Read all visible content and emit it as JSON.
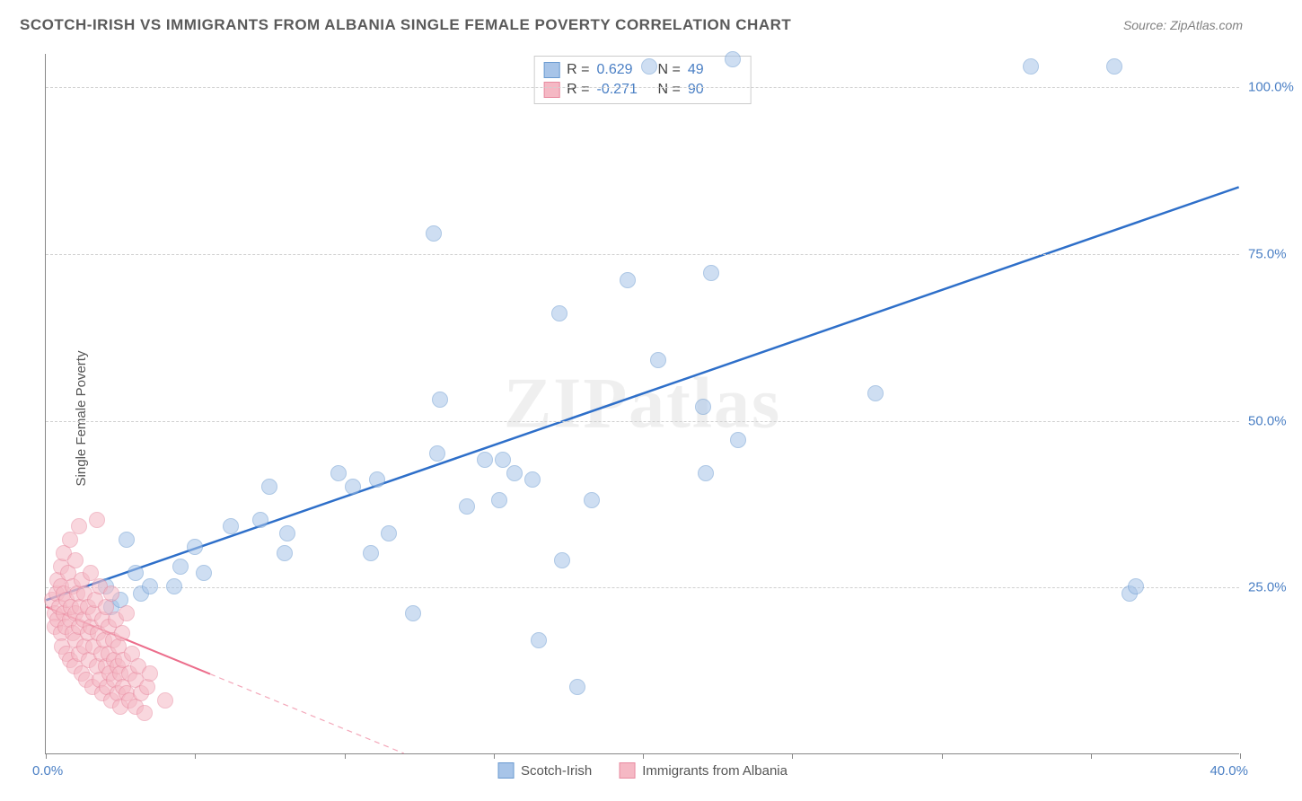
{
  "header": {
    "title": "SCOTCH-IRISH VS IMMIGRANTS FROM ALBANIA SINGLE FEMALE POVERTY CORRELATION CHART",
    "source": "Source: ZipAtlas.com"
  },
  "watermark": "ZIPatlas",
  "chart": {
    "type": "scatter",
    "y_axis_title": "Single Female Poverty",
    "xlim": [
      0,
      40
    ],
    "ylim": [
      0,
      105
    ],
    "x_ticks": [
      0,
      5,
      10,
      15,
      20,
      25,
      30,
      35,
      40
    ],
    "x_tick_labels": {
      "0": "0.0%",
      "40": "40.0%"
    },
    "y_gridlines": [
      25,
      50,
      75,
      100
    ],
    "y_tick_labels": {
      "25": "25.0%",
      "50": "50.0%",
      "75": "75.0%",
      "100": "100.0%"
    },
    "grid_color": "#d0d0d0",
    "axis_color": "#888888",
    "background_color": "#ffffff",
    "tick_label_color": "#4a7fc4",
    "tick_label_fontsize": 15,
    "marker_radius": 9,
    "marker_opacity": 0.55,
    "series": [
      {
        "name": "Scotch-Irish",
        "color_fill": "#a7c4e8",
        "color_stroke": "#6b9bd1",
        "R": "0.629",
        "N": "49",
        "trend": {
          "x1": 0,
          "y1": 23,
          "x2": 40,
          "y2": 85,
          "color": "#2e6fc9",
          "width": 2.5,
          "dash": "none"
        },
        "points": [
          [
            2.0,
            25
          ],
          [
            2.2,
            22
          ],
          [
            2.5,
            23
          ],
          [
            2.7,
            32
          ],
          [
            3.0,
            27
          ],
          [
            3.2,
            24
          ],
          [
            3.5,
            25
          ],
          [
            4.3,
            25
          ],
          [
            4.5,
            28
          ],
          [
            5.0,
            31
          ],
          [
            5.3,
            27
          ],
          [
            6.2,
            34
          ],
          [
            7.2,
            35
          ],
          [
            7.5,
            40
          ],
          [
            8.0,
            30
          ],
          [
            8.1,
            33
          ],
          [
            9.8,
            42
          ],
          [
            10.3,
            40
          ],
          [
            10.9,
            30
          ],
          [
            11.1,
            41
          ],
          [
            11.5,
            33
          ],
          [
            12.3,
            21
          ],
          [
            13.0,
            78
          ],
          [
            13.1,
            45
          ],
          [
            13.2,
            53
          ],
          [
            14.1,
            37
          ],
          [
            14.7,
            44
          ],
          [
            15.2,
            38
          ],
          [
            15.3,
            44
          ],
          [
            15.7,
            42
          ],
          [
            16.3,
            41
          ],
          [
            16.5,
            17
          ],
          [
            17.2,
            66
          ],
          [
            17.3,
            29
          ],
          [
            17.8,
            10
          ],
          [
            18.3,
            38
          ],
          [
            19.5,
            71
          ],
          [
            20.2,
            103
          ],
          [
            20.5,
            59
          ],
          [
            22.0,
            52
          ],
          [
            22.1,
            42
          ],
          [
            22.3,
            72
          ],
          [
            23.0,
            104
          ],
          [
            23.2,
            47
          ],
          [
            27.8,
            54
          ],
          [
            33.0,
            103
          ],
          [
            35.8,
            103
          ],
          [
            36.3,
            24
          ],
          [
            36.5,
            25
          ]
        ]
      },
      {
        "name": "Immigrants from Albania",
        "color_fill": "#f5b8c4",
        "color_stroke": "#e88aa0",
        "R": "-0.271",
        "N": "90",
        "trend": {
          "x1": 0,
          "y1": 22,
          "x2": 12,
          "y2": 0,
          "color": "#ec6e8c",
          "width": 2,
          "dash": "solid_then_dash",
          "solid_until_x": 5.5
        },
        "points": [
          [
            0.2,
            23
          ],
          [
            0.3,
            21
          ],
          [
            0.3,
            19
          ],
          [
            0.35,
            24
          ],
          [
            0.4,
            20
          ],
          [
            0.4,
            26
          ],
          [
            0.45,
            22
          ],
          [
            0.5,
            18
          ],
          [
            0.5,
            25
          ],
          [
            0.5,
            28
          ],
          [
            0.55,
            16
          ],
          [
            0.6,
            21
          ],
          [
            0.6,
            24
          ],
          [
            0.6,
            30
          ],
          [
            0.65,
            19
          ],
          [
            0.7,
            23
          ],
          [
            0.7,
            15
          ],
          [
            0.75,
            27
          ],
          [
            0.8,
            20
          ],
          [
            0.8,
            14
          ],
          [
            0.8,
            32
          ],
          [
            0.85,
            22
          ],
          [
            0.9,
            18
          ],
          [
            0.9,
            25
          ],
          [
            0.95,
            13
          ],
          [
            1.0,
            21
          ],
          [
            1.0,
            17
          ],
          [
            1.0,
            29
          ],
          [
            1.05,
            24
          ],
          [
            1.1,
            19
          ],
          [
            1.1,
            15
          ],
          [
            1.1,
            34
          ],
          [
            1.15,
            22
          ],
          [
            1.2,
            26
          ],
          [
            1.2,
            12
          ],
          [
            1.25,
            20
          ],
          [
            1.3,
            16
          ],
          [
            1.3,
            24
          ],
          [
            1.35,
            11
          ],
          [
            1.4,
            18
          ],
          [
            1.4,
            22
          ],
          [
            1.45,
            14
          ],
          [
            1.5,
            27
          ],
          [
            1.5,
            19
          ],
          [
            1.55,
            10
          ],
          [
            1.6,
            21
          ],
          [
            1.6,
            16
          ],
          [
            1.65,
            23
          ],
          [
            1.7,
            13
          ],
          [
            1.7,
            35
          ],
          [
            1.75,
            18
          ],
          [
            1.8,
            11
          ],
          [
            1.8,
            25
          ],
          [
            1.85,
            15
          ],
          [
            1.9,
            20
          ],
          [
            1.9,
            9
          ],
          [
            1.95,
            17
          ],
          [
            2.0,
            13
          ],
          [
            2.0,
            22
          ],
          [
            2.05,
            10
          ],
          [
            2.1,
            19
          ],
          [
            2.1,
            15
          ],
          [
            2.15,
            12
          ],
          [
            2.2,
            24
          ],
          [
            2.2,
            8
          ],
          [
            2.25,
            17
          ],
          [
            2.3,
            14
          ],
          [
            2.3,
            11
          ],
          [
            2.35,
            20
          ],
          [
            2.4,
            13
          ],
          [
            2.4,
            9
          ],
          [
            2.45,
            16
          ],
          [
            2.5,
            12
          ],
          [
            2.5,
            7
          ],
          [
            2.55,
            18
          ],
          [
            2.6,
            10
          ],
          [
            2.6,
            14
          ],
          [
            2.7,
            9
          ],
          [
            2.7,
            21
          ],
          [
            2.8,
            12
          ],
          [
            2.8,
            8
          ],
          [
            2.9,
            15
          ],
          [
            3.0,
            11
          ],
          [
            3.0,
            7
          ],
          [
            3.1,
            13
          ],
          [
            3.2,
            9
          ],
          [
            3.3,
            6
          ],
          [
            3.4,
            10
          ],
          [
            3.5,
            12
          ],
          [
            4.0,
            8
          ]
        ]
      }
    ]
  },
  "legend_top": {
    "r_label": "R =",
    "n_label": "N ="
  }
}
